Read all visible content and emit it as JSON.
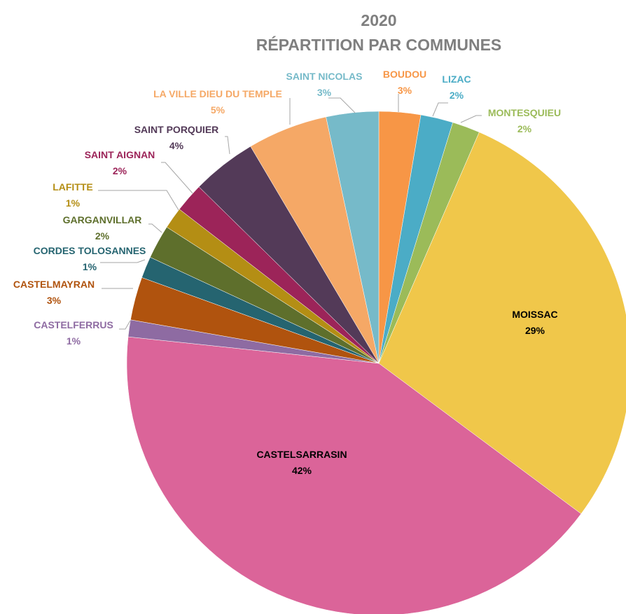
{
  "chart_data": {
    "type": "pie",
    "title": "2020",
    "subtitle": "RÉPARTITION PAR COMMUNES",
    "slices": [
      {
        "name": "BOUDOU",
        "value": 2.7,
        "label": "3%",
        "color": "#F79646"
      },
      {
        "name": "LIZAC",
        "value": 2.1,
        "label": "2%",
        "color": "#4BACC6"
      },
      {
        "name": "MONTESQUIEU",
        "value": 1.8,
        "label": "2%",
        "color": "#9BBB59"
      },
      {
        "name": "MOISSAC",
        "value": 29.0,
        "label": "29%",
        "color": "#F0C74A"
      },
      {
        "name": "CASTELSARRASIN",
        "value": 42.0,
        "label": "42%",
        "color": "#DB6499"
      },
      {
        "name": "CASTELFERRUS",
        "value": 1.1,
        "label": "1%",
        "color": "#8E6BA2"
      },
      {
        "name": "CASTELMAYRAN",
        "value": 2.8,
        "label": "3%",
        "color": "#B0530E"
      },
      {
        "name": "CORDES TOLOSANNES",
        "value": 1.4,
        "label": "1%",
        "color": "#256470"
      },
      {
        "name": "GARGANVILLAR",
        "value": 2.2,
        "label": "2%",
        "color": "#5E6F2C"
      },
      {
        "name": "LAFITTE",
        "value": 1.4,
        "label": "1%",
        "color": "#B48E14"
      },
      {
        "name": "SAINT AIGNAN",
        "value": 1.9,
        "label": "2%",
        "color": "#9C2459"
      },
      {
        "name": "SAINT PORQUIER",
        "value": 4.2,
        "label": "4%",
        "color": "#533A58"
      },
      {
        "name": "LA VILLE DIEU DU TEMPLE",
        "value": 5.2,
        "label": "5%",
        "color": "#F5A866"
      },
      {
        "name": "SAINT NICOLAS",
        "value": 3.4,
        "label": "3%",
        "color": "#76BAC9"
      }
    ],
    "legend": "none"
  }
}
